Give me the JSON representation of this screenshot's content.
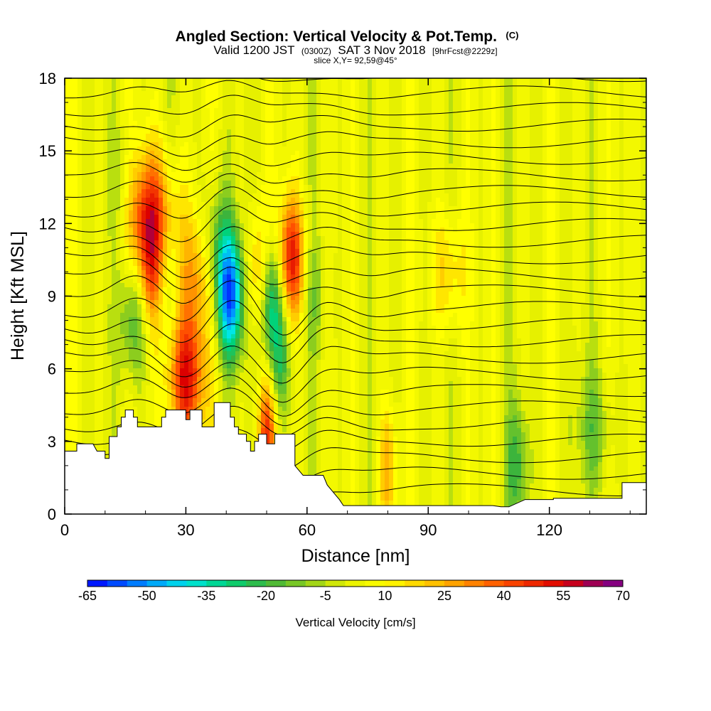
{
  "chart_data": {
    "type": "heatmap",
    "title": "Angled Section: Vertical Velocity & Pot.Temp.",
    "title_unit": "(C)",
    "subtitle_main": "Valid 1200 JST",
    "subtitle_utc": "(0300Z)",
    "subtitle_date": "SAT 3 Nov 2018",
    "subtitle_fcst": "[9hrFcst@2229z]",
    "slice_label": "slice X,Y= 92,59@45°",
    "xlabel": "Distance [nm]",
    "ylabel": "Height [Kft MSL]",
    "xlim": [
      0,
      144
    ],
    "ylim": [
      0,
      18
    ],
    "x_ticks": [
      "0",
      "30",
      "60",
      "90",
      "120"
    ],
    "y_ticks": [
      "0",
      "3",
      "6",
      "9",
      "12",
      "15",
      "18"
    ],
    "colorbar": {
      "label": "Vertical Velocity [cm/s]",
      "ticks": [
        "-65",
        "-50",
        "-35",
        "-20",
        "-5",
        "10",
        "25",
        "40",
        "55",
        "70"
      ],
      "min": -65,
      "max": 70,
      "step": 5,
      "stops": [
        {
          "v": -65,
          "c": "#0000ff"
        },
        {
          "v": -50,
          "c": "#0096ff"
        },
        {
          "v": -40,
          "c": "#00e6e6"
        },
        {
          "v": -30,
          "c": "#00d27a"
        },
        {
          "v": -20,
          "c": "#3cb43c"
        },
        {
          "v": -10,
          "c": "#8ccd1e"
        },
        {
          "v": 0,
          "c": "#e6f000"
        },
        {
          "v": 10,
          "c": "#ffff00"
        },
        {
          "v": 25,
          "c": "#ffb400"
        },
        {
          "v": 40,
          "c": "#ff5000"
        },
        {
          "v": 55,
          "c": "#dc0000"
        },
        {
          "v": 62,
          "c": "#a00050"
        },
        {
          "v": 70,
          "c": "#780096"
        }
      ]
    },
    "vertical_velocity_features": [
      {
        "x": 20,
        "y": 12.5,
        "w": -10,
        "value": 45
      },
      {
        "x": 21,
        "y": 10.0,
        "w": 3,
        "value": 30
      },
      {
        "x": 15,
        "y": 13.0,
        "w": 6,
        "value": -22
      },
      {
        "x": 17,
        "y": 8.0,
        "w": 4,
        "value": -25
      },
      {
        "x": 30,
        "y": 5.6,
        "w": 6,
        "value": 50
      },
      {
        "x": 33,
        "y": 10.0,
        "w": 6,
        "value": 28
      },
      {
        "x": 41,
        "y": 9.0,
        "w": 4,
        "value": -55
      },
      {
        "x": 37,
        "y": 11.0,
        "w": 5,
        "value": -25
      },
      {
        "x": 51,
        "y": 9.0,
        "w": 3,
        "value": -38
      },
      {
        "x": 48,
        "y": 10.0,
        "w": 3,
        "value": 25
      },
      {
        "x": 56,
        "y": 10.5,
        "w": 4,
        "value": 48
      },
      {
        "x": 53,
        "y": 6.5,
        "w": 3,
        "value": -25
      },
      {
        "x": 50,
        "y": 3.2,
        "w": 2,
        "value": 40
      },
      {
        "x": 62,
        "y": 9.0,
        "w": 3,
        "value": -12
      },
      {
        "x": 95,
        "y": 10.0,
        "w": 5,
        "value": 18
      },
      {
        "x": 112,
        "y": 2.0,
        "w": 3,
        "value": -22
      },
      {
        "x": 131,
        "y": 3.5,
        "w": 6,
        "value": -15
      },
      {
        "x": 80,
        "y": 1.8,
        "w": 1.5,
        "value": 25
      }
    ],
    "pot_temp_isolines": {
      "unit": "C",
      "count": 27
    },
    "terrain_kft": [
      [
        0,
        2.6
      ],
      [
        3,
        2.6
      ],
      [
        3,
        2.9
      ],
      [
        7,
        2.9
      ],
      [
        8,
        2.6
      ],
      [
        10,
        2.6
      ],
      [
        10,
        2.3
      ],
      [
        11,
        2.3
      ],
      [
        11,
        3.2
      ],
      [
        13,
        3.2
      ],
      [
        13,
        3.6
      ],
      [
        14,
        3.6
      ],
      [
        14,
        4.0
      ],
      [
        15,
        4.0
      ],
      [
        15,
        4.3
      ],
      [
        17,
        4.3
      ],
      [
        17,
        4.0
      ],
      [
        18,
        4.0
      ],
      [
        18,
        3.6
      ],
      [
        24,
        3.6
      ],
      [
        24,
        4.0
      ],
      [
        25,
        4.0
      ],
      [
        25,
        4.3
      ],
      [
        30,
        4.3
      ],
      [
        30,
        3.9
      ],
      [
        31,
        3.9
      ],
      [
        31,
        4.3
      ],
      [
        34,
        4.3
      ],
      [
        34,
        3.6
      ],
      [
        37,
        3.6
      ],
      [
        37,
        4.6
      ],
      [
        41,
        4.6
      ],
      [
        41,
        4.0
      ],
      [
        42,
        4.0
      ],
      [
        42,
        3.6
      ],
      [
        43,
        3.6
      ],
      [
        43,
        3.3
      ],
      [
        45,
        3.3
      ],
      [
        45,
        3.0
      ],
      [
        46,
        3.0
      ],
      [
        46,
        2.6
      ],
      [
        47,
        2.6
      ],
      [
        47,
        3.0
      ],
      [
        48,
        3.0
      ],
      [
        48,
        3.3
      ],
      [
        50,
        3.3
      ],
      [
        50,
        2.9
      ],
      [
        52,
        2.9
      ],
      [
        52,
        3.3
      ],
      [
        57,
        3.3
      ],
      [
        57,
        2.0
      ],
      [
        58,
        1.8
      ],
      [
        59,
        1.6
      ],
      [
        60,
        1.6
      ],
      [
        60,
        1.6
      ],
      [
        64,
        1.6
      ],
      [
        65,
        1.2
      ],
      [
        67,
        0.8
      ],
      [
        68,
        0.6
      ],
      [
        69,
        0.35
      ],
      [
        80,
        0.35
      ],
      [
        80,
        0.35
      ],
      [
        106,
        0.35
      ],
      [
        108,
        0.3
      ],
      [
        110,
        0.3
      ],
      [
        114,
        0.6
      ],
      [
        117,
        0.6
      ],
      [
        121,
        0.6
      ],
      [
        121,
        0.65
      ],
      [
        138,
        0.65
      ],
      [
        138,
        1.3
      ],
      [
        144,
        1.3
      ]
    ],
    "grid": false
  }
}
